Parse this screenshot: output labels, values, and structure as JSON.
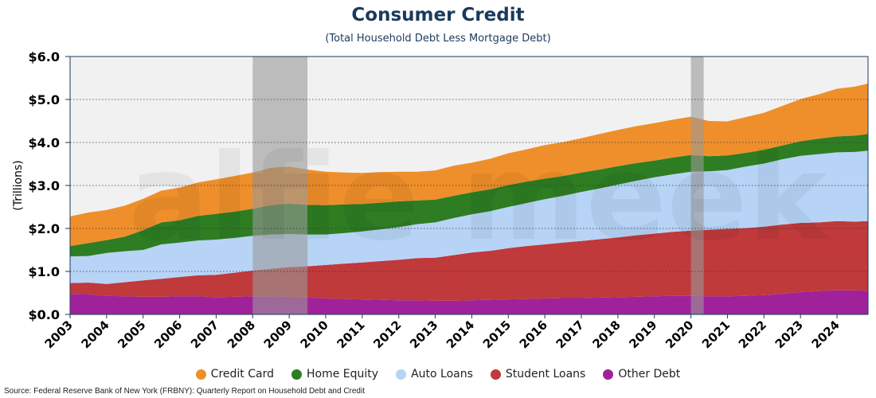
{
  "title": "Consumer Credit",
  "subtitle": "(Total Household Debt Less Mortgage Debt)",
  "source": "Source: Federal Reserve Bank of New York (FRBNY): Quarterly Report on Household Debt and Credit",
  "watermark": "alfie meek",
  "chart_data": {
    "type": "area",
    "stacked": true,
    "ylabel": "(Trillions)",
    "ylim": [
      0,
      6
    ],
    "xlim": [
      2003,
      2024.85
    ],
    "yticks": [
      "$0.0",
      "$1.0",
      "$2.0",
      "$3.0",
      "$4.0",
      "$5.0",
      "$6.0"
    ],
    "xticks": [
      "2003",
      "2004",
      "2005",
      "2006",
      "2007",
      "2008",
      "2009",
      "2010",
      "2011",
      "2012",
      "2013",
      "2014",
      "2015",
      "2016",
      "2017",
      "2018",
      "2019",
      "2020",
      "2021",
      "2022",
      "2023",
      "2024"
    ],
    "recessions": [
      [
        2008.0,
        2009.5
      ],
      [
        2020.0,
        2020.35
      ]
    ],
    "grid": "horizontal dotted",
    "legend_position": "bottom",
    "x": [
      2003.0,
      2003.5,
      2004.0,
      2004.5,
      2005.0,
      2005.5,
      2006.0,
      2006.5,
      2007.0,
      2007.5,
      2008.0,
      2008.5,
      2009.0,
      2009.5,
      2010.0,
      2010.5,
      2011.0,
      2011.5,
      2012.0,
      2012.5,
      2013.0,
      2013.5,
      2014.0,
      2014.5,
      2015.0,
      2015.5,
      2016.0,
      2016.5,
      2017.0,
      2017.5,
      2018.0,
      2018.5,
      2019.0,
      2019.5,
      2020.0,
      2020.5,
      2021.0,
      2021.5,
      2022.0,
      2022.5,
      2023.0,
      2023.5,
      2024.0,
      2024.5,
      2024.85
    ],
    "series": [
      {
        "name": "Other Debt",
        "color": "#a0229a",
        "values": [
          0.48,
          0.47,
          0.43,
          0.42,
          0.41,
          0.41,
          0.42,
          0.42,
          0.4,
          0.41,
          0.42,
          0.42,
          0.41,
          0.39,
          0.37,
          0.36,
          0.35,
          0.34,
          0.33,
          0.33,
          0.32,
          0.32,
          0.33,
          0.34,
          0.35,
          0.36,
          0.37,
          0.38,
          0.38,
          0.39,
          0.4,
          0.41,
          0.42,
          0.43,
          0.43,
          0.42,
          0.42,
          0.43,
          0.45,
          0.48,
          0.52,
          0.54,
          0.56,
          0.56,
          0.55
        ]
      },
      {
        "name": "Student Loans",
        "color": "#c0393b",
        "values": [
          0.25,
          0.27,
          0.28,
          0.33,
          0.38,
          0.42,
          0.45,
          0.49,
          0.52,
          0.56,
          0.6,
          0.64,
          0.69,
          0.73,
          0.78,
          0.82,
          0.86,
          0.9,
          0.94,
          0.98,
          1.0,
          1.06,
          1.11,
          1.14,
          1.19,
          1.23,
          1.26,
          1.29,
          1.33,
          1.36,
          1.39,
          1.43,
          1.46,
          1.49,
          1.52,
          1.55,
          1.57,
          1.58,
          1.59,
          1.61,
          1.61,
          1.6,
          1.61,
          1.6,
          1.62
        ]
      },
      {
        "name": "Auto Loans",
        "color": "#b7d4f7",
        "values": [
          0.62,
          0.62,
          0.72,
          0.72,
          0.71,
          0.8,
          0.8,
          0.81,
          0.82,
          0.81,
          0.81,
          0.8,
          0.77,
          0.74,
          0.71,
          0.71,
          0.72,
          0.74,
          0.76,
          0.79,
          0.82,
          0.86,
          0.89,
          0.92,
          0.96,
          1.0,
          1.05,
          1.09,
          1.14,
          1.18,
          1.23,
          1.27,
          1.31,
          1.34,
          1.37,
          1.36,
          1.37,
          1.43,
          1.47,
          1.52,
          1.56,
          1.59,
          1.6,
          1.62,
          1.64
        ]
      },
      {
        "name": "Home Equity",
        "color": "#2e7d22",
        "values": [
          0.24,
          0.3,
          0.3,
          0.34,
          0.46,
          0.51,
          0.52,
          0.57,
          0.6,
          0.61,
          0.63,
          0.68,
          0.71,
          0.69,
          0.68,
          0.67,
          0.64,
          0.62,
          0.6,
          0.55,
          0.53,
          0.52,
          0.51,
          0.51,
          0.51,
          0.5,
          0.48,
          0.46,
          0.45,
          0.44,
          0.43,
          0.41,
          0.39,
          0.39,
          0.39,
          0.35,
          0.34,
          0.32,
          0.32,
          0.32,
          0.34,
          0.36,
          0.37,
          0.38,
          0.39
        ]
      },
      {
        "name": "Credit Card",
        "color": "#ef8f2b",
        "values": [
          0.69,
          0.71,
          0.7,
          0.72,
          0.73,
          0.74,
          0.76,
          0.78,
          0.8,
          0.83,
          0.84,
          0.87,
          0.86,
          0.82,
          0.78,
          0.74,
          0.72,
          0.71,
          0.69,
          0.67,
          0.68,
          0.7,
          0.69,
          0.71,
          0.74,
          0.75,
          0.78,
          0.79,
          0.8,
          0.83,
          0.84,
          0.86,
          0.87,
          0.88,
          0.89,
          0.82,
          0.79,
          0.83,
          0.86,
          0.92,
          0.98,
          1.03,
          1.11,
          1.14,
          1.17
        ]
      }
    ]
  }
}
